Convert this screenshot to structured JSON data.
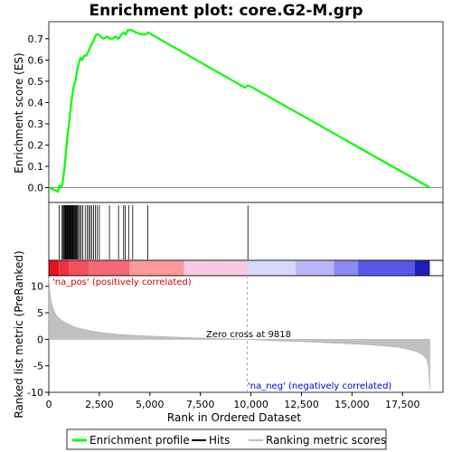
{
  "chart_data": {
    "type": "line",
    "title": "Enrichment plot: core.G2-M.grp",
    "xlabel": "Rank in Ordered Dataset",
    "top_panel": {
      "ylabel": "Enrichment score (ES)",
      "ylim": [
        -0.07,
        0.78
      ],
      "yticks": [
        0.0,
        0.1,
        0.2,
        0.3,
        0.4,
        0.5,
        0.6,
        0.7
      ],
      "ytick_labels": [
        "0.0",
        "0.1",
        "0.2",
        "0.3",
        "0.4",
        "0.5",
        "0.6",
        "0.7"
      ],
      "series": [
        {
          "name": "Enrichment profile",
          "color": "#00ff00",
          "x": [
            0,
            250,
            450,
            520,
            600,
            680,
            720,
            760,
            800,
            840,
            880,
            920,
            960,
            1000,
            1040,
            1080,
            1120,
            1160,
            1200,
            1260,
            1320,
            1400,
            1500,
            1560,
            1650,
            1750,
            1850,
            1950,
            2050,
            2150,
            2250,
            2350,
            2450,
            2700,
            2900,
            3000,
            3150,
            3300,
            3450,
            3600,
            3700,
            3800,
            3900,
            4000,
            4100,
            4300,
            4600,
            4800,
            4900,
            9700,
            9820,
            9900,
            18850
          ],
          "y": [
            0.0,
            -0.01,
            -0.02,
            0.01,
            0.0,
            0.02,
            0.05,
            0.08,
            0.12,
            0.16,
            0.2,
            0.24,
            0.27,
            0.3,
            0.34,
            0.37,
            0.4,
            0.43,
            0.46,
            0.49,
            0.5,
            0.55,
            0.59,
            0.61,
            0.6,
            0.62,
            0.62,
            0.64,
            0.66,
            0.68,
            0.7,
            0.72,
            0.72,
            0.7,
            0.71,
            0.7,
            0.7,
            0.71,
            0.7,
            0.72,
            0.73,
            0.72,
            0.74,
            0.74,
            0.74,
            0.73,
            0.72,
            0.72,
            0.73,
            0.47,
            0.48,
            0.48,
            0.0
          ]
        }
      ]
    },
    "hits_panel": {
      "legend_label": "Hits",
      "hit_ranks": [
        520,
        640,
        700,
        740,
        780,
        810,
        840,
        870,
        900,
        930,
        960,
        990,
        1020,
        1050,
        1080,
        1110,
        1140,
        1170,
        1200,
        1230,
        1260,
        1300,
        1340,
        1380,
        1420,
        1470,
        1530,
        1600,
        1680,
        1800,
        1900,
        1980,
        2050,
        2130,
        2210,
        2300,
        2400,
        2500,
        3000,
        3450,
        3700,
        3780,
        3950,
        4150,
        4900,
        9850
      ]
    },
    "metric_panel": {
      "ylabel": "Ranked list metric (PreRanked)",
      "legend_label": "Ranking metric scores",
      "ylim": [
        -10,
        12
      ],
      "yticks": [
        -10,
        -5,
        0,
        5,
        10
      ],
      "ytick_labels": [
        "-10",
        "-5",
        "0",
        "5",
        "10"
      ],
      "x": [
        0,
        50,
        100,
        200,
        300,
        400,
        600,
        800,
        1000,
        1300,
        1700,
        2200,
        3000,
        4000,
        5000,
        6000,
        7000,
        8000,
        9000,
        9818,
        11000,
        12500,
        14000,
        15500,
        16500,
        17300,
        17800,
        18200,
        18500,
        18700,
        18800,
        18850
      ],
      "y": [
        11.8,
        9.0,
        7.5,
        6.0,
        5.0,
        4.4,
        3.7,
        3.2,
        2.8,
        2.3,
        1.9,
        1.5,
        1.1,
        0.8,
        0.6,
        0.45,
        0.3,
        0.2,
        0.1,
        0.0,
        -0.25,
        -0.45,
        -0.7,
        -0.95,
        -1.2,
        -1.5,
        -1.9,
        -2.3,
        -2.9,
        -3.8,
        -5.5,
        -9.5
      ],
      "pos_label": "'na_pos' (positively correlated)",
      "neg_label": "'na_neg' (negatively correlated)",
      "zero_cross_label": "Zero cross at 9818",
      "zero_cross_rank": 9818
    },
    "xlim": [
      0,
      19500
    ],
    "xticks": [
      0,
      2500,
      5000,
      7500,
      10000,
      12500,
      15000,
      17500
    ],
    "xtick_labels": [
      "0",
      "2,500",
      "5,000",
      "7,500",
      "10,000",
      "12,500",
      "15,000",
      "17,500"
    ],
    "n_genes": 18850,
    "color_bar": [
      {
        "from": 0,
        "to": 500,
        "color": "#e81020"
      },
      {
        "from": 500,
        "to": 1000,
        "color": "#f03040"
      },
      {
        "from": 1000,
        "to": 2000,
        "color": "#f25060"
      },
      {
        "from": 2000,
        "to": 4000,
        "color": "#f46878"
      },
      {
        "from": 4000,
        "to": 6700,
        "color": "#f99a9a"
      },
      {
        "from": 6700,
        "to": 9818,
        "color": "#fbc8e4"
      },
      {
        "from": 9818,
        "to": 12200,
        "color": "#d8d8fb"
      },
      {
        "from": 12200,
        "to": 14100,
        "color": "#b8b8f8"
      },
      {
        "from": 14100,
        "to": 15300,
        "color": "#8a8af4"
      },
      {
        "from": 15300,
        "to": 18100,
        "color": "#5858e8"
      },
      {
        "from": 18100,
        "to": 18850,
        "color": "#1e1eb8"
      }
    ],
    "legend": [
      "Enrichment profile",
      "Hits",
      "Ranking metric scores"
    ]
  }
}
